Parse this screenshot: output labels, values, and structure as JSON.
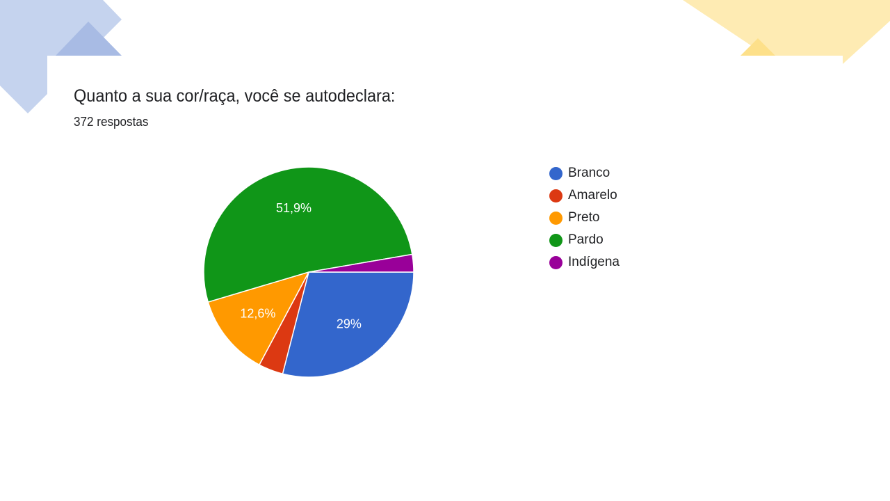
{
  "colors": {
    "deco_blue": "#c5d3ee",
    "deco_blue_dark": "#a8bbe4",
    "deco_yellow": "#feebb3",
    "deco_yellow_dark": "#fde08a"
  },
  "header": {
    "title": "Quanto a sua cor/raça, você se autodeclara:",
    "subtitle": "372 respostas"
  },
  "chart_data": {
    "type": "pie",
    "title": "Quanto a sua cor/raça, você se autodeclara:",
    "legend_position": "right",
    "slices": [
      {
        "label": "Branco",
        "value": 29.0,
        "display": "29%",
        "color": "#3366cc"
      },
      {
        "label": "Amarelo",
        "value": 3.8,
        "display": "",
        "color": "#dc3912"
      },
      {
        "label": "Preto",
        "value": 12.6,
        "display": "12,6%",
        "color": "#ff9900"
      },
      {
        "label": "Pardo",
        "value": 51.9,
        "display": "51,9%",
        "color": "#109618"
      },
      {
        "label": "Indígena",
        "value": 2.7,
        "display": "",
        "color": "#990099"
      }
    ]
  }
}
